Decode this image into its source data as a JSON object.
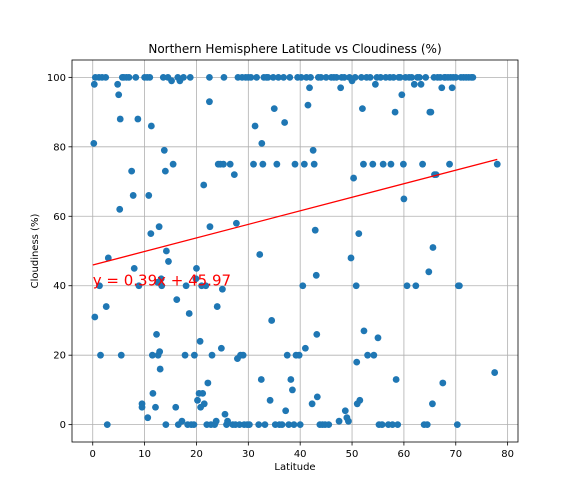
{
  "chart_data": {
    "type": "scatter",
    "title": "Northern Hemisphere Latitude vs Cloudiness (%)",
    "xlabel": "Latitude",
    "ylabel": "Cloudiness (%)",
    "xlim": [
      -4,
      82
    ],
    "ylim": [
      -5,
      105
    ],
    "x_ticks": [
      0,
      10,
      20,
      30,
      40,
      50,
      60,
      70,
      80
    ],
    "y_ticks": [
      0,
      20,
      40,
      60,
      80,
      100
    ],
    "grid": true,
    "point_color": "#1f77b4",
    "regression": {
      "label": "y = 0.39x + 45.97",
      "slope": 0.39,
      "intercept": 45.97,
      "x_range": [
        0,
        78
      ],
      "color": "#ff0000",
      "label_position": [
        0,
        40
      ]
    },
    "points": [
      [
        0.2,
        81
      ],
      [
        0.3,
        98
      ],
      [
        0.5,
        100
      ],
      [
        0.4,
        31
      ],
      [
        1.2,
        100
      ],
      [
        1.3,
        40
      ],
      [
        1.8,
        100
      ],
      [
        1.5,
        20
      ],
      [
        2.5,
        100
      ],
      [
        2.6,
        34
      ],
      [
        2.8,
        0
      ],
      [
        3.0,
        48
      ],
      [
        4.8,
        98
      ],
      [
        5.0,
        95
      ],
      [
        5.3,
        88
      ],
      [
        5.2,
        62
      ],
      [
        5.5,
        20
      ],
      [
        5.7,
        100
      ],
      [
        6.0,
        100
      ],
      [
        6.5,
        100
      ],
      [
        7.0,
        100
      ],
      [
        7.5,
        73
      ],
      [
        7.8,
        66
      ],
      [
        8.0,
        45
      ],
      [
        8.3,
        100
      ],
      [
        8.7,
        88
      ],
      [
        8.9,
        40
      ],
      [
        9.5,
        6
      ],
      [
        9.5,
        5
      ],
      [
        10.0,
        100
      ],
      [
        10.5,
        100
      ],
      [
        10.8,
        66
      ],
      [
        10.6,
        2
      ],
      [
        11.0,
        100
      ],
      [
        11.3,
        86
      ],
      [
        11.2,
        55
      ],
      [
        11.5,
        20
      ],
      [
        11.6,
        9
      ],
      [
        12.1,
        5
      ],
      [
        12.3,
        26
      ],
      [
        12.5,
        41
      ],
      [
        12.8,
        57
      ],
      [
        12.6,
        20
      ],
      [
        12.9,
        21
      ],
      [
        13.0,
        16
      ],
      [
        13.2,
        42
      ],
      [
        13.3,
        40
      ],
      [
        13.6,
        100
      ],
      [
        13.8,
        79
      ],
      [
        14.0,
        73
      ],
      [
        14.1,
        0
      ],
      [
        14.2,
        50
      ],
      [
        14.5,
        100
      ],
      [
        14.6,
        47
      ],
      [
        15.2,
        99
      ],
      [
        15.5,
        75
      ],
      [
        16.0,
        5
      ],
      [
        16.2,
        36
      ],
      [
        16.4,
        100
      ],
      [
        16.5,
        0
      ],
      [
        16.8,
        99
      ],
      [
        17.2,
        1
      ],
      [
        17.5,
        100
      ],
      [
        17.8,
        20
      ],
      [
        18.0,
        40
      ],
      [
        18.3,
        0
      ],
      [
        18.6,
        32
      ],
      [
        18.8,
        100
      ],
      [
        19.0,
        0
      ],
      [
        19.5,
        0
      ],
      [
        19.6,
        20
      ],
      [
        19.9,
        42
      ],
      [
        20.0,
        45
      ],
      [
        20.2,
        7
      ],
      [
        20.5,
        9
      ],
      [
        20.7,
        24
      ],
      [
        20.8,
        5
      ],
      [
        21.0,
        40
      ],
      [
        21.2,
        9
      ],
      [
        21.4,
        69
      ],
      [
        21.5,
        6
      ],
      [
        21.8,
        40
      ],
      [
        22.0,
        0
      ],
      [
        22.2,
        12
      ],
      [
        22.5,
        93
      ],
      [
        22.6,
        57
      ],
      [
        22.5,
        100
      ],
      [
        22.8,
        0
      ],
      [
        23.0,
        20
      ],
      [
        23.5,
        0
      ],
      [
        23.8,
        1
      ],
      [
        24.0,
        34
      ],
      [
        24.2,
        75
      ],
      [
        24.6,
        75
      ],
      [
        24.8,
        22
      ],
      [
        25.0,
        39
      ],
      [
        25.2,
        75
      ],
      [
        25.3,
        100
      ],
      [
        25.5,
        3
      ],
      [
        25.8,
        0
      ],
      [
        26.0,
        1
      ],
      [
        26.5,
        75
      ],
      [
        27.0,
        0
      ],
      [
        27.3,
        72
      ],
      [
        27.5,
        0
      ],
      [
        27.7,
        58
      ],
      [
        27.9,
        19
      ],
      [
        28.0,
        100
      ],
      [
        28.3,
        0
      ],
      [
        28.5,
        20
      ],
      [
        28.8,
        100
      ],
      [
        29.0,
        20
      ],
      [
        29.2,
        0
      ],
      [
        29.5,
        100
      ],
      [
        29.8,
        0
      ],
      [
        30.0,
        100
      ],
      [
        30.2,
        0
      ],
      [
        30.5,
        100
      ],
      [
        31.0,
        75
      ],
      [
        31.3,
        86
      ],
      [
        31.6,
        100
      ],
      [
        32.0,
        0
      ],
      [
        32.2,
        49
      ],
      [
        32.5,
        13
      ],
      [
        32.6,
        81
      ],
      [
        32.8,
        75
      ],
      [
        33.0,
        100
      ],
      [
        33.2,
        0
      ],
      [
        33.5,
        100
      ],
      [
        33.8,
        100
      ],
      [
        34.2,
        7
      ],
      [
        34.5,
        30
      ],
      [
        34.8,
        100
      ],
      [
        35.0,
        91
      ],
      [
        35.2,
        0
      ],
      [
        35.5,
        75
      ],
      [
        35.8,
        100
      ],
      [
        36.0,
        0
      ],
      [
        36.5,
        0
      ],
      [
        36.8,
        100
      ],
      [
        37.0,
        87
      ],
      [
        37.2,
        4
      ],
      [
        37.5,
        20
      ],
      [
        37.8,
        0
      ],
      [
        38.0,
        100
      ],
      [
        38.2,
        13
      ],
      [
        38.5,
        10
      ],
      [
        38.8,
        0
      ],
      [
        39.0,
        75
      ],
      [
        39.2,
        20
      ],
      [
        39.5,
        100
      ],
      [
        39.8,
        20
      ],
      [
        40.0,
        0
      ],
      [
        40.2,
        100
      ],
      [
        40.5,
        40
      ],
      [
        40.8,
        75
      ],
      [
        41.0,
        22
      ],
      [
        41.2,
        100
      ],
      [
        41.5,
        92
      ],
      [
        41.8,
        97
      ],
      [
        42.0,
        100
      ],
      [
        42.3,
        6
      ],
      [
        42.5,
        79
      ],
      [
        42.7,
        75
      ],
      [
        42.9,
        56
      ],
      [
        43.1,
        43
      ],
      [
        43.2,
        26
      ],
      [
        43.3,
        8
      ],
      [
        43.5,
        100
      ],
      [
        43.8,
        0
      ],
      [
        44.0,
        100
      ],
      [
        44.3,
        0
      ],
      [
        44.8,
        0
      ],
      [
        45.0,
        100
      ],
      [
        45.5,
        0
      ],
      [
        46.0,
        100
      ],
      [
        46.5,
        100
      ],
      [
        47.0,
        100
      ],
      [
        47.5,
        1
      ],
      [
        47.8,
        97
      ],
      [
        48.0,
        100
      ],
      [
        48.5,
        100
      ],
      [
        48.7,
        4
      ],
      [
        49.0,
        2
      ],
      [
        49.3,
        1
      ],
      [
        49.5,
        100
      ],
      [
        49.8,
        48
      ],
      [
        50.0,
        99
      ],
      [
        50.3,
        71
      ],
      [
        50.6,
        100
      ],
      [
        50.8,
        40
      ],
      [
        50.9,
        18
      ],
      [
        51.0,
        6
      ],
      [
        51.3,
        55
      ],
      [
        51.5,
        7
      ],
      [
        51.8,
        100
      ],
      [
        52.0,
        91
      ],
      [
        52.2,
        75
      ],
      [
        52.3,
        27
      ],
      [
        52.8,
        100
      ],
      [
        53.0,
        20
      ],
      [
        53.5,
        100
      ],
      [
        54.0,
        75
      ],
      [
        54.2,
        20
      ],
      [
        54.5,
        98
      ],
      [
        54.8,
        100
      ],
      [
        55.0,
        25
      ],
      [
        55.2,
        0
      ],
      [
        55.5,
        100
      ],
      [
        55.8,
        0
      ],
      [
        56.0,
        75
      ],
      [
        56.5,
        100
      ],
      [
        57.0,
        0
      ],
      [
        57.3,
        100
      ],
      [
        57.5,
        75
      ],
      [
        57.8,
        0
      ],
      [
        58.0,
        100
      ],
      [
        58.3,
        90
      ],
      [
        58.5,
        13
      ],
      [
        58.8,
        0
      ],
      [
        59.0,
        100
      ],
      [
        59.3,
        100
      ],
      [
        59.6,
        95
      ],
      [
        59.9,
        75
      ],
      [
        60.0,
        65
      ],
      [
        60.3,
        100
      ],
      [
        60.6,
        40
      ],
      [
        61.0,
        100
      ],
      [
        61.5,
        100
      ],
      [
        62.0,
        98
      ],
      [
        62.3,
        40
      ],
      [
        62.6,
        100
      ],
      [
        63.0,
        100
      ],
      [
        63.3,
        98
      ],
      [
        63.6,
        75
      ],
      [
        63.9,
        0
      ],
      [
        64.2,
        100
      ],
      [
        64.5,
        0
      ],
      [
        64.8,
        44
      ],
      [
        65.0,
        90
      ],
      [
        65.2,
        90
      ],
      [
        65.5,
        6
      ],
      [
        65.8,
        100
      ],
      [
        65.6,
        51
      ],
      [
        65.9,
        72
      ],
      [
        66.2,
        72
      ],
      [
        66.5,
        100
      ],
      [
        67.0,
        100
      ],
      [
        67.3,
        97
      ],
      [
        67.5,
        12
      ],
      [
        67.8,
        100
      ],
      [
        68.0,
        100
      ],
      [
        68.5,
        100
      ],
      [
        68.8,
        75
      ],
      [
        69.0,
        100
      ],
      [
        69.3,
        97
      ],
      [
        69.5,
        100
      ],
      [
        70.0,
        100
      ],
      [
        70.3,
        0
      ],
      [
        70.5,
        40
      ],
      [
        70.7,
        40
      ],
      [
        71.0,
        100
      ],
      [
        71.5,
        100
      ],
      [
        72.0,
        100
      ],
      [
        72.5,
        100
      ],
      [
        73.0,
        100
      ],
      [
        73.3,
        100
      ],
      [
        77.5,
        15
      ],
      [
        78.0,
        75
      ]
    ]
  }
}
